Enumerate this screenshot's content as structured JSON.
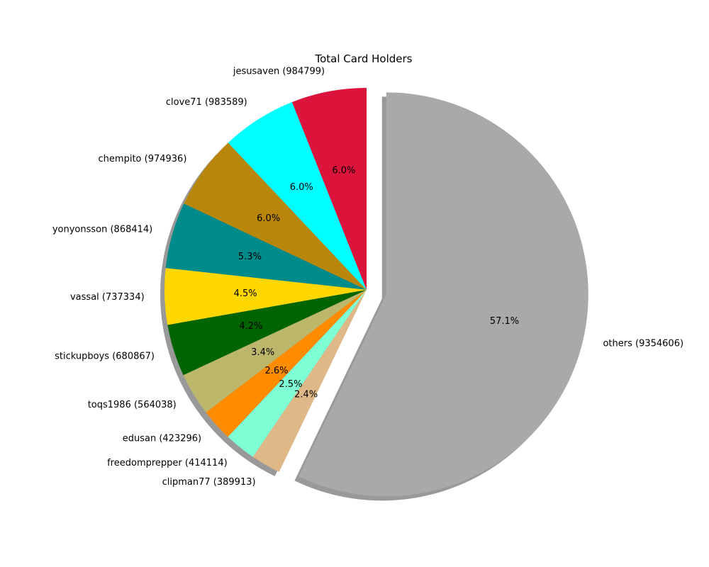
{
  "chart_data": {
    "type": "pie",
    "title": "Total Card Holders",
    "start_angle_deg": 90,
    "direction": "counterclockwise",
    "shadow": true,
    "slices": [
      {
        "label": "jesusaven (984799)",
        "value": 984799,
        "pct_label": "6.0%",
        "color": "#dc143c"
      },
      {
        "label": "clove71 (983589)",
        "value": 983589,
        "pct_label": "6.0%",
        "color": "#00ffff"
      },
      {
        "label": "chempito (974936)",
        "value": 974936,
        "pct_label": "6.0%",
        "color": "#b8860b"
      },
      {
        "label": "yonyonsson (868414)",
        "value": 868414,
        "pct_label": "5.3%",
        "color": "#008b8b"
      },
      {
        "label": "vassal (737334)",
        "value": 737334,
        "pct_label": "4.5%",
        "color": "#ffd700"
      },
      {
        "label": "stickupboys (680867)",
        "value": 680867,
        "pct_label": "4.2%",
        "color": "#006400"
      },
      {
        "label": "toqs1986 (564038)",
        "value": 564038,
        "pct_label": "3.4%",
        "color": "#bdb76b"
      },
      {
        "label": "edusan (423296)",
        "value": 423296,
        "pct_label": "2.6%",
        "color": "#ff8c00"
      },
      {
        "label": "freedomprepper (414114)",
        "value": 414114,
        "pct_label": "2.5%",
        "color": "#7fffd4"
      },
      {
        "label": "clipman77 (389913)",
        "value": 389913,
        "pct_label": "2.4%",
        "color": "#deb887"
      },
      {
        "label": "others (9354606)",
        "value": 9354606,
        "pct_label": "57.1%",
        "color": "#a9a9a9",
        "exploded": true
      }
    ]
  }
}
